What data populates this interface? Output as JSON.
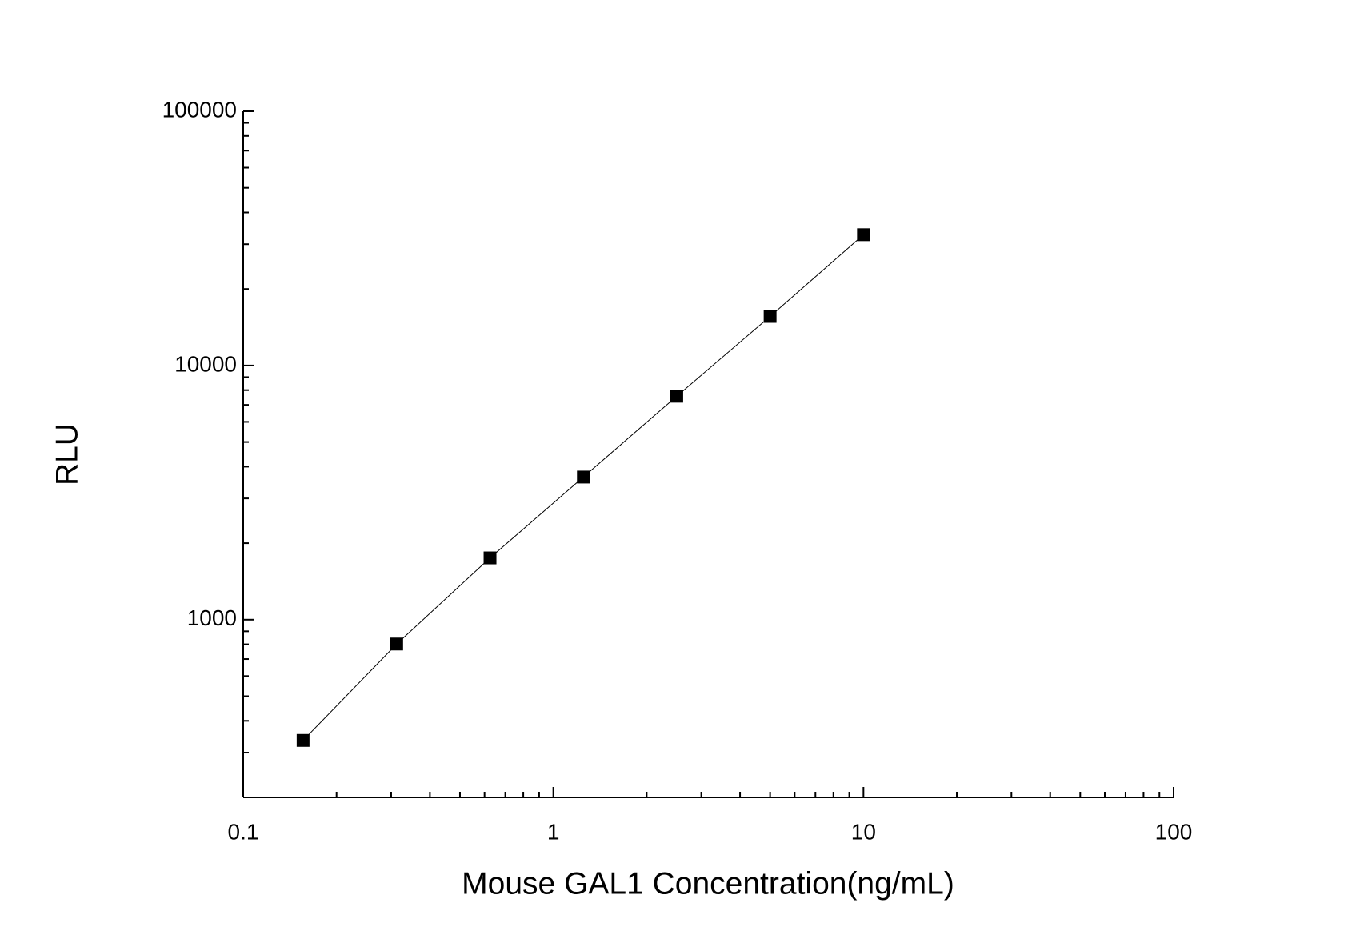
{
  "chart_data": {
    "type": "scatter-line",
    "x_label": "Mouse GAL1 Concentration(ng/mL)",
    "y_label": "RLU",
    "x": [
      0.156,
      0.3125,
      0.625,
      1.25,
      2.5,
      5,
      10
    ],
    "series": [
      {
        "color": "#000000",
        "values": [
          335,
          802,
          1750,
          3640,
          7570,
          15600,
          32700
        ]
      }
    ],
    "x_log": true,
    "y_log": true,
    "xlim": [
      0.1,
      100
    ],
    "ylim": [
      200,
      100000
    ],
    "xticks": [
      0.1,
      1,
      10,
      100
    ],
    "yticks": [
      1000,
      10000,
      100000
    ]
  }
}
